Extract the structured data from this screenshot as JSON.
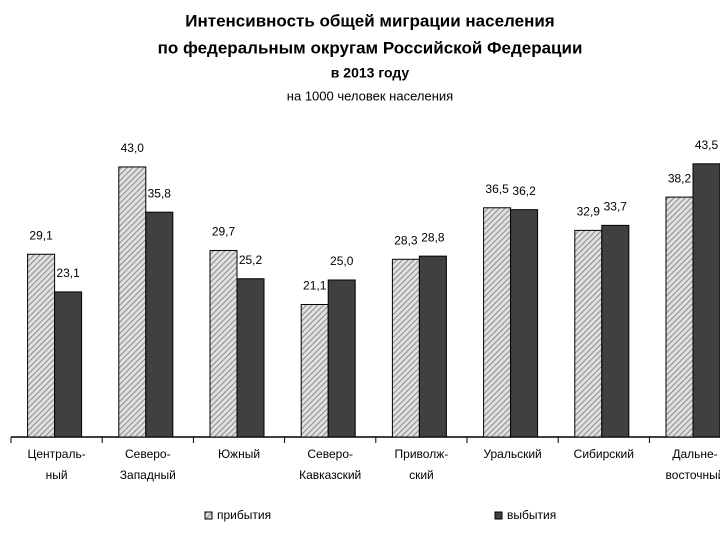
{
  "chart_data": {
    "type": "bar",
    "title": [
      "Интенсивность общей миграции населения",
      "по федеральным округам Российской Федерации",
      "в 2013 году"
    ],
    "subtitle": "на 1000 человек населения",
    "categories": [
      [
        "Централь-",
        "ный"
      ],
      [
        "Северо-",
        "Западный"
      ],
      [
        "Южный"
      ],
      [
        "Северо-",
        "Кавказский"
      ],
      [
        "Приволж-",
        "ский"
      ],
      [
        "Уральский"
      ],
      [
        "Сибирский"
      ],
      [
        "Дальне-",
        "восточный"
      ]
    ],
    "series": [
      {
        "name": "прибытия",
        "color": "#b8b8b8",
        "hatch": true,
        "values": [
          29.1,
          43.0,
          29.7,
          21.1,
          28.3,
          36.5,
          32.9,
          38.2
        ],
        "value_labels": [
          "29,1",
          "43,0",
          "29,7",
          "21,1",
          "28,3",
          "36,5",
          "32,9",
          "38,2"
        ]
      },
      {
        "name": "выбытия",
        "color": "#404040",
        "hatch": false,
        "values": [
          23.1,
          35.8,
          25.2,
          25.0,
          28.8,
          36.2,
          33.7,
          43.5
        ],
        "value_labels": [
          "23,1",
          "35,8",
          "25,2",
          "25,0",
          "28,8",
          "36,2",
          "33,7",
          "43,5"
        ]
      }
    ]
  }
}
